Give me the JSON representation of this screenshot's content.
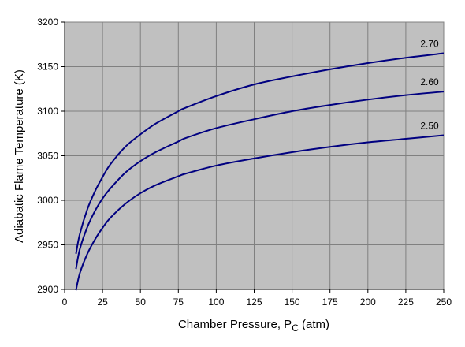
{
  "chart_data": {
    "type": "line",
    "xlabel": "Chamber Pressure, P",
    "xlabel_sub": "C",
    "xlabel_suffix": " (atm)",
    "ylabel": "Adiabatic Flame Temperature (K)",
    "xlim": [
      0,
      250
    ],
    "ylim": [
      2900,
      3200
    ],
    "xticks": [
      0,
      25,
      50,
      75,
      100,
      125,
      150,
      175,
      200,
      225,
      250
    ],
    "yticks": [
      2900,
      2950,
      3000,
      3050,
      3100,
      3150,
      3200
    ],
    "grid": true,
    "plot_background": "#c0c0c0",
    "grid_color": "#808080",
    "line_color": "#000080",
    "series": [
      {
        "name": "2.70",
        "x": [
          7.5,
          10,
          15,
          20,
          25,
          30,
          40,
          50,
          60,
          75,
          80,
          100,
          125,
          150,
          175,
          200,
          225,
          250
        ],
        "y": [
          2940,
          2962,
          2990,
          3010,
          3026,
          3040,
          3060,
          3074,
          3086,
          3100,
          3104,
          3117,
          3130,
          3139,
          3147,
          3154,
          3160,
          3165
        ]
      },
      {
        "name": "2.60",
        "x": [
          7.5,
          10,
          15,
          20,
          25,
          30,
          40,
          50,
          60,
          75,
          80,
          100,
          125,
          150,
          175,
          200,
          225,
          250
        ],
        "y": [
          2923,
          2945,
          2970,
          2988,
          3002,
          3013,
          3031,
          3044,
          3054,
          3066,
          3070,
          3081,
          3091,
          3100,
          3107,
          3113,
          3118,
          3122
        ]
      },
      {
        "name": "2.50",
        "x": [
          7.5,
          10,
          15,
          20,
          25,
          30,
          40,
          50,
          60,
          75,
          80,
          100,
          125,
          150,
          175,
          200,
          225,
          250
        ],
        "y": [
          2899,
          2918,
          2940,
          2956,
          2969,
          2980,
          2996,
          3008,
          3017,
          3027,
          3030,
          3039,
          3047,
          3054,
          3060,
          3065,
          3069,
          3073
        ]
      }
    ]
  }
}
